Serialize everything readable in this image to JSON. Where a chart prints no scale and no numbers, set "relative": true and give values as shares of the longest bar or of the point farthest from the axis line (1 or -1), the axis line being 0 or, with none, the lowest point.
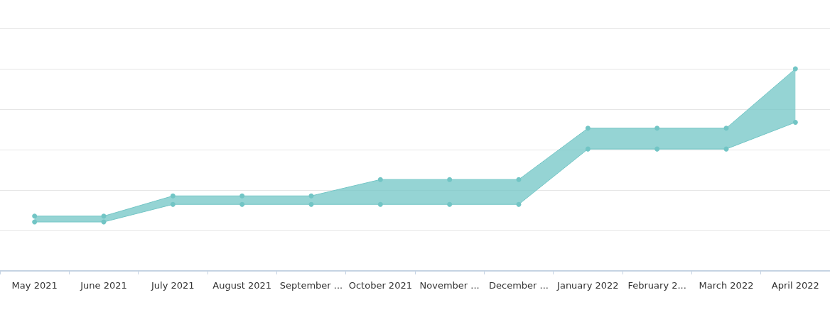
{
  "chart_data": {
    "type": "line",
    "relative": true,
    "grid": "y",
    "marker": "circle",
    "categories": [
      "May 2021",
      "June 2021",
      "July 2021",
      "August 2021",
      "September ...",
      "October 2021",
      "November ...",
      "December ...",
      "January 2022",
      "February 2...",
      "March 2022",
      "April 2022"
    ],
    "series": [
      {
        "color": "#72c5c5",
        "values": [
          0.271,
          0.271,
          0.371,
          0.371,
          0.371,
          0.452,
          0.452,
          0.452,
          0.706,
          0.706,
          0.706,
          1
        ],
        "lower": [
          0.242,
          0.242,
          0.329,
          0.329,
          0.329,
          0.329,
          0.329,
          0.329,
          0.603,
          0.603,
          0.603,
          0.735
        ],
        "upper": [
          0.271,
          0.271,
          0.371,
          0.371,
          0.371,
          0.452,
          0.452,
          0.452,
          0.706,
          0.706,
          0.706,
          1
        ]
      },
      {
        "color": "#72c5c5",
        "values": [
          0.242,
          0.242,
          0.329,
          0.329,
          0.329,
          0.329,
          0.329,
          0.329,
          0.603,
          0.603,
          0.603,
          0.735
        ]
      }
    ]
  }
}
